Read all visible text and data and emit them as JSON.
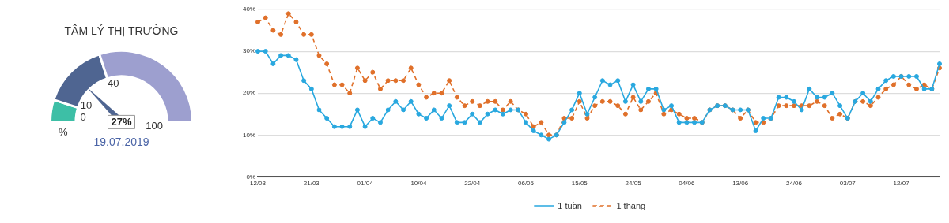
{
  "chart_data": [
    {
      "type": "donut",
      "title": "TÂM LÝ THỊ TRƯỜNG",
      "categories": [
        "0",
        "10",
        "40"
      ],
      "values": [
        10,
        30,
        60
      ],
      "colors": [
        "#3dbfa6",
        "#4f6591",
        "#9d9fcf"
      ],
      "needle": "10",
      "ylabel": "%",
      "annotations": [
        "100",
        "27%",
        "19.07.2019"
      ]
    },
    {
      "type": "line",
      "categories": [
        "12/03",
        null,
        null,
        null,
        null,
        null,
        null,
        "21/03",
        null,
        null,
        null,
        null,
        null,
        null,
        "01/04",
        null,
        null,
        null,
        null,
        null,
        null,
        "10/04",
        null,
        null,
        null,
        null,
        null,
        null,
        "22/04",
        null,
        null,
        null,
        null,
        null,
        null,
        "06/05",
        null,
        null,
        null,
        null,
        null,
        null,
        "15/05",
        null,
        null,
        null,
        null,
        null,
        null,
        "24/05",
        null,
        null,
        null,
        null,
        null,
        null,
        "04/06",
        null,
        null,
        null,
        null,
        null,
        null,
        "13/06",
        null,
        null,
        null,
        null,
        null,
        null,
        "24/06",
        null,
        null,
        null,
        null,
        null,
        null,
        "03/07",
        null,
        null,
        null,
        null,
        null,
        null,
        "12/07",
        null,
        null,
        null,
        null,
        null
      ],
      "series": [
        {
          "name": "1 tuần",
          "color": "#29a8df",
          "line_style": "solid",
          "values": [
            30,
            30,
            27,
            29,
            29,
            28,
            23,
            21,
            16,
            14,
            12,
            12,
            12,
            16,
            12,
            14,
            13,
            16,
            18,
            16,
            18,
            15,
            14,
            16,
            14,
            17,
            13,
            13,
            15,
            13,
            15,
            16,
            15,
            16,
            16,
            13,
            11,
            10,
            9,
            10,
            13,
            16,
            20,
            15,
            19,
            23,
            22,
            23,
            18,
            22,
            18,
            21,
            21,
            16,
            17,
            13,
            13,
            13,
            13,
            16,
            17,
            17,
            16,
            16,
            16,
            11,
            14,
            14,
            19,
            19,
            18,
            16,
            21,
            19,
            19,
            20,
            17,
            14,
            18,
            20,
            18,
            21,
            23,
            24,
            24,
            24,
            24,
            21,
            21,
            27
          ]
        },
        {
          "name": "1 tháng",
          "color": "#e0702a",
          "line_style": "dashed",
          "values": [
            37,
            38,
            35,
            34,
            39,
            37,
            34,
            34,
            29,
            27,
            22,
            22,
            20,
            26,
            23,
            25,
            21,
            23,
            23,
            23,
            26,
            22,
            19,
            20,
            20,
            23,
            19,
            17,
            18,
            17,
            18,
            18,
            16,
            18,
            16,
            15,
            12,
            13,
            10,
            10,
            14,
            14,
            18,
            14,
            17,
            18,
            18,
            17,
            15,
            19,
            16,
            18,
            20,
            15,
            16,
            15,
            14,
            14,
            13,
            16,
            17,
            17,
            16,
            14,
            16,
            13,
            13,
            14,
            17,
            17,
            17,
            17,
            17,
            18,
            17,
            14,
            15,
            14,
            18,
            18,
            17,
            19,
            21,
            22,
            24,
            22,
            21,
            22,
            21,
            26
          ]
        }
      ],
      "ylim": [
        0,
        40
      ],
      "yticks": [
        {
          "value": 0,
          "label": "0%"
        },
        {
          "value": 10,
          "label": "10%"
        },
        {
          "value": 20,
          "label": "20%"
        },
        {
          "value": 30,
          "label": "30%"
        },
        {
          "value": 40,
          "label": "40%"
        }
      ],
      "grid": "y",
      "legend": "bottom",
      "marker": "circle"
    }
  ]
}
